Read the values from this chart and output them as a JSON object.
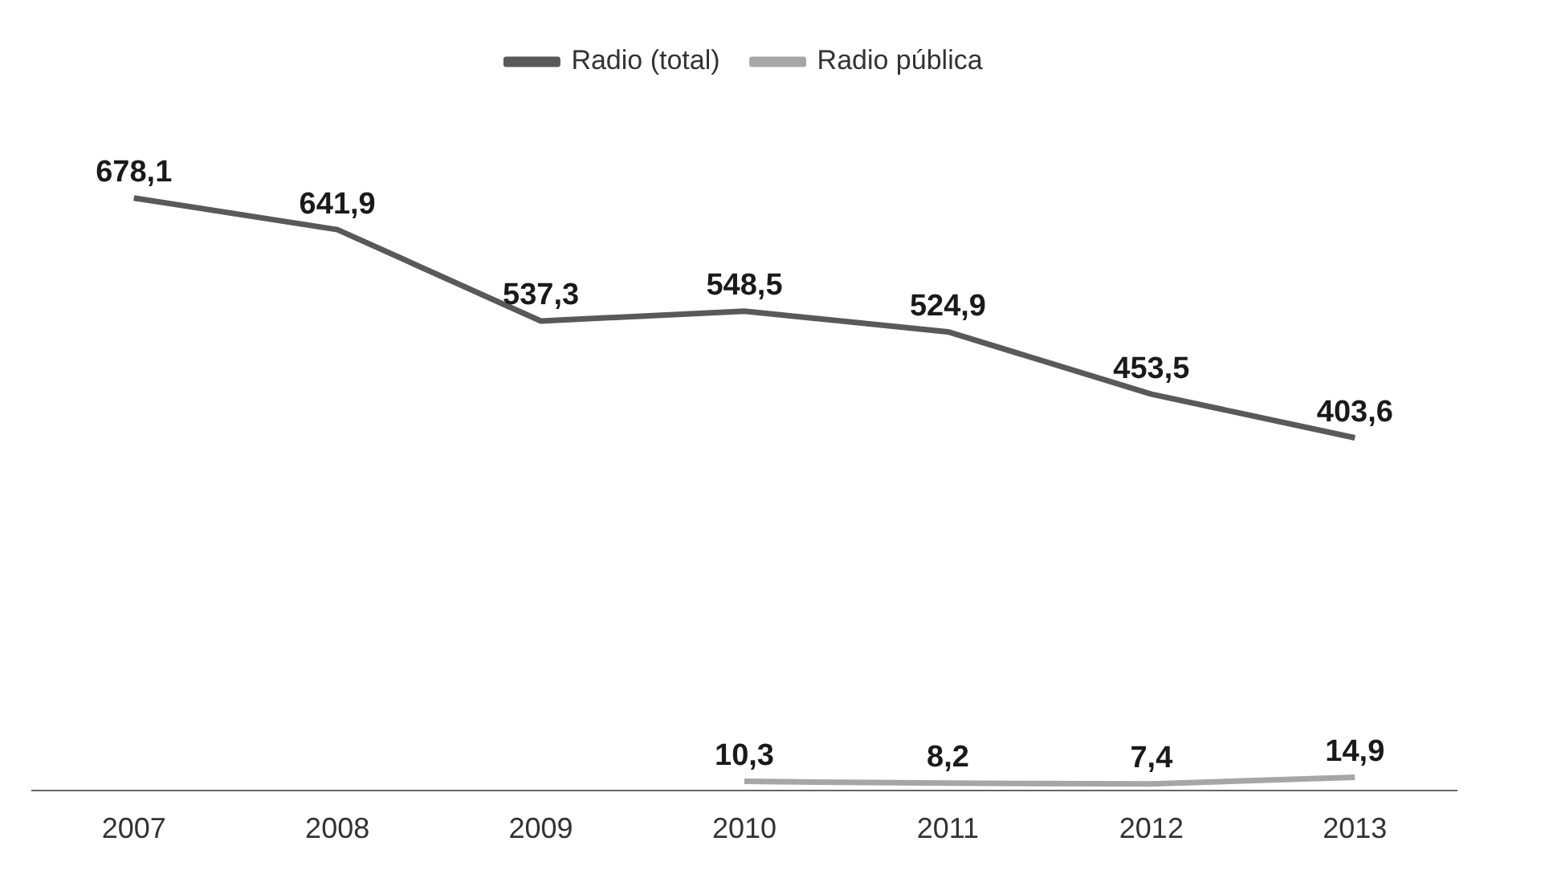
{
  "chart_data": {
    "type": "line",
    "categories": [
      "2007",
      "2008",
      "2009",
      "2010",
      "2011",
      "2012",
      "2013"
    ],
    "series": [
      {
        "name": "Radio (total)",
        "color": "#595959",
        "values": [
          678.1,
          641.9,
          537.3,
          548.5,
          524.9,
          453.5,
          403.6
        ],
        "value_labels": [
          "678,1",
          "641,9",
          "537,3",
          "548,5",
          "524,9",
          "453,5",
          "403,6"
        ]
      },
      {
        "name": "Radio pública",
        "color": "#a6a6a6",
        "values": [
          null,
          null,
          null,
          10.3,
          8.2,
          7.4,
          14.9
        ],
        "value_labels": [
          null,
          null,
          null,
          "10,3",
          "8,2",
          "7,4",
          "14,9"
        ]
      }
    ],
    "legend": "top",
    "grid": false,
    "marker": "none",
    "line_style": "solid",
    "tick_labels": "x"
  }
}
